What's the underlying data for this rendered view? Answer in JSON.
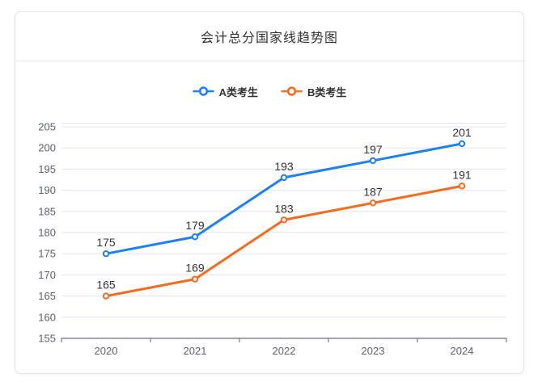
{
  "card": {
    "title": "会计总分国家线趋势图"
  },
  "colors": {
    "series_a": "#1e80f8",
    "series_b": "#f76b1e",
    "gridline": "#e2e6f1",
    "axis_line": "#6e7079",
    "axis_label": "#5e626b",
    "data_label": "#333333",
    "title_text": "#333333",
    "card_border": "#e3e3e6",
    "marker_fill": "#ffffff"
  },
  "chart_data": {
    "type": "line",
    "title": "会计总分国家线趋势图",
    "categories": [
      "2020",
      "2021",
      "2022",
      "2023",
      "2024"
    ],
    "series": [
      {
        "name": "A类考生",
        "color": "#1e80f8",
        "values": [
          175,
          179,
          193,
          197,
          201
        ]
      },
      {
        "name": "B类考生",
        "color": "#f76b1e",
        "values": [
          165,
          169,
          183,
          187,
          191
        ]
      }
    ],
    "xlabel": "",
    "ylabel": "",
    "ylim": [
      155,
      205
    ],
    "ytick_step": 5,
    "grid": true,
    "legend_position": "top",
    "data_labels": true,
    "marker": "hollow-circle"
  }
}
